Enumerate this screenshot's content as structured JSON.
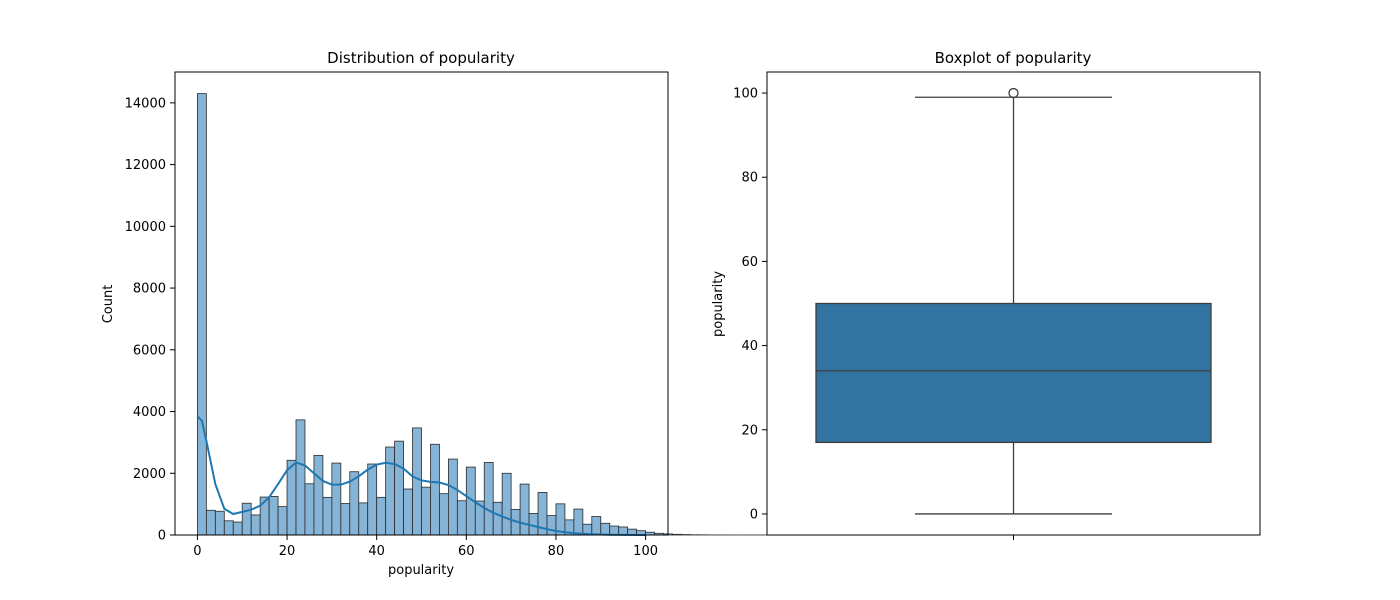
{
  "chart_data": [
    {
      "type": "bar",
      "subtype": "histogram-with-kde",
      "title": "Distribution of popularity",
      "xlabel": "popularity",
      "ylabel": "Count",
      "xlim": [
        -5,
        105
      ],
      "ylim": [
        0,
        15000
      ],
      "xticks": [
        0,
        20,
        40,
        60,
        80,
        100
      ],
      "yticks": [
        0,
        2000,
        4000,
        6000,
        8000,
        10000,
        12000,
        14000
      ],
      "grid": false,
      "colors": {
        "bar_fill": "#86b4d6",
        "bar_edge": "#2b2b2b",
        "kde_line": "#1f77b4"
      },
      "bin_width": 2,
      "bin_start": 0,
      "values": [
        14300,
        800,
        770,
        460,
        420,
        1030,
        650,
        1230,
        1250,
        920,
        2420,
        3730,
        1660,
        2580,
        1220,
        2330,
        1020,
        2050,
        1040,
        2300,
        1220,
        2850,
        3040,
        1490,
        3470,
        1550,
        2940,
        1340,
        2460,
        1110,
        2200,
        1100,
        2350,
        1060,
        2000,
        830,
        1650,
        700,
        1380,
        630,
        1010,
        490,
        840,
        350,
        600,
        380,
        290,
        260,
        190,
        140,
        90,
        55,
        35,
        22,
        14,
        8,
        5,
        3,
        2,
        1,
        1,
        1,
        1,
        1,
        1,
        1
      ],
      "kde": {
        "x": [
          0,
          1,
          2,
          4,
          6,
          8,
          10,
          12,
          14,
          16,
          18,
          20,
          22,
          24,
          26,
          28,
          30,
          32,
          34,
          36,
          38,
          40,
          42,
          44,
          46,
          48,
          50,
          52,
          54,
          56,
          58,
          60,
          62,
          64,
          66,
          68,
          70,
          72,
          74,
          76,
          78,
          80,
          82,
          84,
          86,
          88,
          90,
          92,
          95,
          100
        ],
        "y": [
          3850,
          3700,
          3050,
          1650,
          850,
          680,
          750,
          820,
          950,
          1220,
          1650,
          2100,
          2350,
          2250,
          2000,
          1750,
          1630,
          1630,
          1730,
          1900,
          2120,
          2280,
          2340,
          2300,
          2150,
          1900,
          1770,
          1720,
          1700,
          1620,
          1460,
          1260,
          1060,
          880,
          720,
          600,
          490,
          400,
          330,
          260,
          190,
          130,
          90,
          60,
          40,
          25,
          15,
          8,
          3,
          0
        ]
      }
    },
    {
      "type": "box",
      "title": "Boxplot of popularity",
      "xlabel": "",
      "ylabel": "popularity",
      "ylim": [
        -5,
        105
      ],
      "yticks": [
        0,
        20,
        40,
        60,
        80,
        100
      ],
      "grid": false,
      "colors": {
        "box_fill": "#3274a1",
        "box_edge": "#3d3d3d"
      },
      "min": 0,
      "q1": 17,
      "median": 34,
      "q3": 50,
      "max": 99,
      "outliers": [
        100
      ]
    }
  ]
}
